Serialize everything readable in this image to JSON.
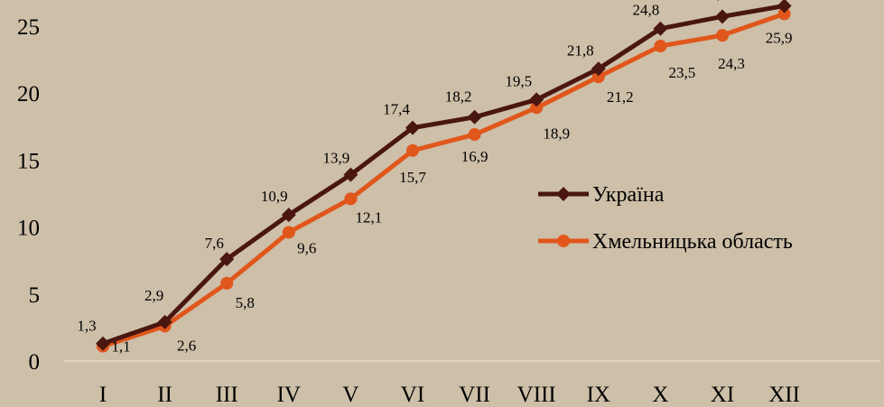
{
  "chart_data": {
    "type": "line",
    "title": "",
    "xlabel": "",
    "ylabel": "",
    "categories": [
      "I",
      "II",
      "III",
      "IV",
      "V",
      "VI",
      "VII",
      "VIII",
      "IX",
      "X",
      "XI",
      "XII"
    ],
    "ylim": [
      0,
      26
    ],
    "yticks": [
      0,
      5,
      10,
      15,
      20,
      25
    ],
    "grid": false,
    "legend_position": "right",
    "series": [
      {
        "name": "Україна",
        "color": "#4a1610",
        "marker": "diamond",
        "values": [
          1.3,
          2.9,
          7.6,
          10.9,
          13.9,
          17.4,
          18.2,
          19.5,
          21.8,
          24.8,
          25.7,
          26.5
        ],
        "labels": [
          "1,3",
          "2,9",
          "7,6",
          "10,9",
          "13,9",
          "17,4",
          "18,2",
          "19,5",
          "21,8",
          "24,8",
          "25,7",
          ""
        ]
      },
      {
        "name": "Хмельницька область",
        "color": "#e0561b",
        "marker": "circle",
        "values": [
          1.1,
          2.6,
          5.8,
          9.6,
          12.1,
          15.7,
          16.9,
          18.9,
          21.2,
          23.5,
          24.3,
          25.9
        ],
        "labels": [
          "1,1",
          "2,6",
          "5,8",
          "9,6",
          "12,1",
          "15,7",
          "16,9",
          "18,9",
          "21,2",
          "23,5",
          "24,3",
          "25,9"
        ]
      }
    ]
  }
}
